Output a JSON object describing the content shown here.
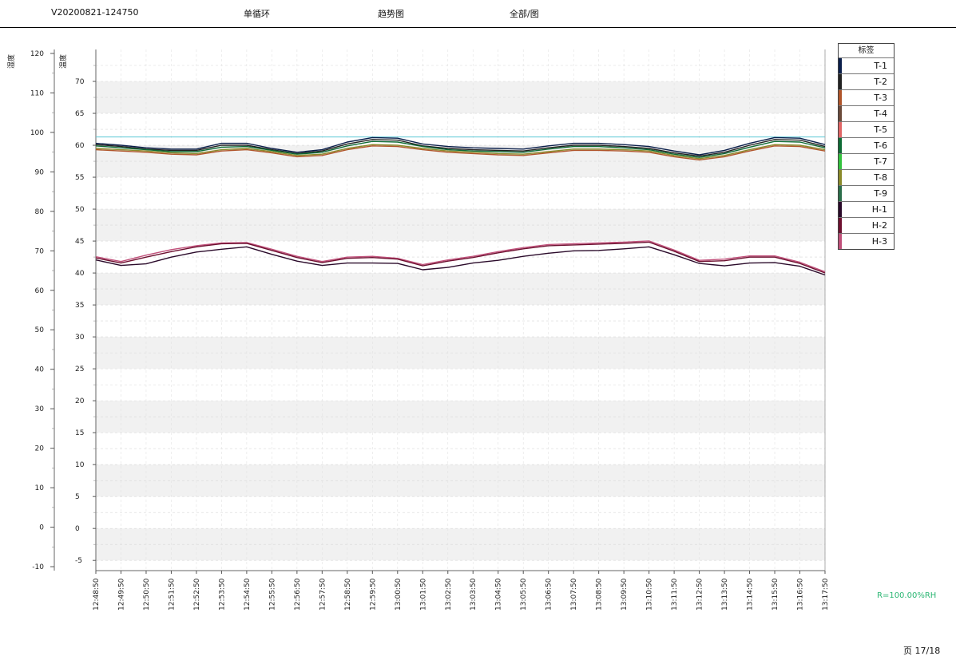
{
  "header": {
    "device_id": "V20200821-124750",
    "item1": "单循环",
    "item2": "趋势图",
    "item3": "全部/图"
  },
  "footer": {
    "note": "R=100.00%RH",
    "note_color": "#2bb673",
    "page": "页 17/18"
  },
  "legend": {
    "title": "标签",
    "items": [
      {
        "label": "T-1",
        "color": "#0b1f4b"
      },
      {
        "label": "T-2",
        "color": "#222222"
      },
      {
        "label": "T-3",
        "color": "#b0552a"
      },
      {
        "label": "T-4",
        "color": "#6b4a3a"
      },
      {
        "label": "T-5",
        "color": "#e06666"
      },
      {
        "label": "T-6",
        "color": "#0e6b35"
      },
      {
        "label": "T-7",
        "color": "#34c23e"
      },
      {
        "label": "T-8",
        "color": "#8a8a2a"
      },
      {
        "label": "T-9",
        "color": "#2b6e4a"
      },
      {
        "label": "H-1",
        "color": "#2a0a2a"
      },
      {
        "label": "H-2",
        "color": "#6e1030"
      },
      {
        "label": "H-3",
        "color": "#c0507a"
      }
    ]
  },
  "chart_data": {
    "type": "line",
    "left_axis": {
      "label": "湿度",
      "ticks": [
        -10,
        0,
        10,
        20,
        30,
        40,
        50,
        60,
        70,
        80,
        90,
        100,
        110,
        120
      ],
      "ylim": [
        -11,
        121
      ]
    },
    "right_axis": {
      "label": "温度",
      "ticks": [
        -5,
        0,
        5,
        10,
        15,
        20,
        25,
        30,
        35,
        40,
        45,
        50,
        55,
        60,
        65,
        70
      ],
      "ylim": [
        -6.6,
        75
      ]
    },
    "reference_line": {
      "value": 61.3,
      "axis": "temperature",
      "color": "#5bc8d6"
    },
    "x": [
      "12:48:50",
      "12:49:50",
      "12:50:50",
      "12:51:50",
      "12:52:50",
      "12:53:50",
      "12:54:50",
      "12:55:50",
      "12:56:50",
      "12:57:50",
      "12:58:50",
      "12:59:50",
      "13:00:50",
      "13:01:50",
      "13:02:50",
      "13:03:50",
      "13:04:50",
      "13:05:50",
      "13:06:50",
      "13:07:50",
      "13:08:50",
      "13:09:50",
      "13:10:50",
      "13:11:50",
      "13:12:50",
      "13:13:50",
      "13:14:50",
      "13:15:50",
      "13:16:50",
      "13:17:50"
    ],
    "series": [
      {
        "name": "T-1",
        "axis": "temperature",
        "color": "#0b1f4b",
        "values": [
          60.3,
          60.0,
          59.6,
          59.4,
          59.4,
          60.3,
          60.3,
          59.5,
          58.9,
          59.3,
          60.5,
          61.2,
          61.1,
          60.2,
          59.8,
          59.6,
          59.5,
          59.4,
          59.9,
          60.3,
          60.3,
          60.1,
          59.8,
          59.1,
          58.5,
          59.2,
          60.3,
          61.2,
          61.1,
          60.1
        ]
      },
      {
        "name": "T-2",
        "axis": "temperature",
        "color": "#222222",
        "values": [
          60.1,
          59.8,
          59.4,
          59.2,
          59.2,
          60.0,
          60.0,
          59.3,
          58.7,
          59.1,
          60.2,
          60.9,
          60.8,
          59.9,
          59.5,
          59.3,
          59.2,
          59.1,
          59.6,
          60.0,
          60.0,
          59.8,
          59.5,
          58.8,
          58.3,
          58.9,
          60.0,
          60.9,
          60.8,
          59.8
        ]
      },
      {
        "name": "T-6",
        "axis": "temperature",
        "color": "#0e6b35",
        "values": [
          59.9,
          59.6,
          59.3,
          59.0,
          59.0,
          59.7,
          59.8,
          59.2,
          58.6,
          58.9,
          59.9,
          60.6,
          60.5,
          59.8,
          59.3,
          59.1,
          59.0,
          58.9,
          59.4,
          59.8,
          59.8,
          59.6,
          59.3,
          58.6,
          58.1,
          58.7,
          59.7,
          60.6,
          60.5,
          59.6
        ]
      },
      {
        "name": "T-8",
        "axis": "temperature",
        "color": "#8a8a2a",
        "values": [
          59.5,
          59.3,
          59.1,
          58.8,
          58.7,
          59.3,
          59.5,
          59.0,
          58.4,
          58.6,
          59.5,
          60.1,
          60.0,
          59.5,
          59.1,
          58.9,
          58.7,
          58.6,
          59.0,
          59.4,
          59.4,
          59.3,
          59.1,
          58.4,
          57.9,
          58.4,
          59.3,
          60.1,
          60.0,
          59.3
        ]
      },
      {
        "name": "T-3",
        "axis": "temperature",
        "color": "#b0552a",
        "values": [
          59.3,
          59.1,
          58.9,
          58.6,
          58.5,
          59.1,
          59.3,
          58.8,
          58.2,
          58.4,
          59.3,
          59.9,
          59.8,
          59.3,
          58.9,
          58.7,
          58.5,
          58.4,
          58.8,
          59.2,
          59.2,
          59.1,
          58.9,
          58.2,
          57.7,
          58.2,
          59.1,
          59.9,
          59.8,
          59.1
        ]
      },
      {
        "name": "H-3",
        "axis": "humidity",
        "color": "#c0507a",
        "values": [
          68.5,
          67.3,
          68.9,
          70.3,
          71.3,
          72.0,
          72.1,
          70.4,
          68.6,
          67.3,
          68.4,
          68.6,
          68.1,
          66.5,
          67.7,
          68.6,
          69.8,
          70.8,
          71.6,
          71.8,
          72.0,
          72.2,
          72.5,
          70.2,
          67.6,
          67.9,
          68.7,
          68.7,
          67.1,
          64.7
        ]
      },
      {
        "name": "H-2",
        "axis": "humidity",
        "color": "#6e1030",
        "values": [
          68.2,
          66.9,
          68.4,
          69.8,
          71.0,
          71.8,
          71.9,
          70.1,
          68.3,
          67.0,
          68.1,
          68.3,
          67.9,
          66.2,
          67.4,
          68.3,
          69.5,
          70.5,
          71.3,
          71.5,
          71.7,
          71.9,
          72.2,
          69.9,
          67.3,
          67.5,
          68.4,
          68.4,
          66.8,
          64.4
        ]
      },
      {
        "name": "H-1",
        "axis": "humidity",
        "color": "#2a0a2a",
        "values": [
          67.7,
          66.3,
          66.7,
          68.4,
          69.7,
          70.4,
          71.0,
          69.1,
          67.4,
          66.3,
          66.9,
          66.9,
          66.8,
          65.2,
          65.8,
          66.9,
          67.6,
          68.6,
          69.4,
          70.0,
          70.1,
          70.5,
          71.0,
          69.0,
          66.8,
          66.2,
          66.9,
          67.0,
          66.1,
          63.9
        ]
      }
    ]
  }
}
